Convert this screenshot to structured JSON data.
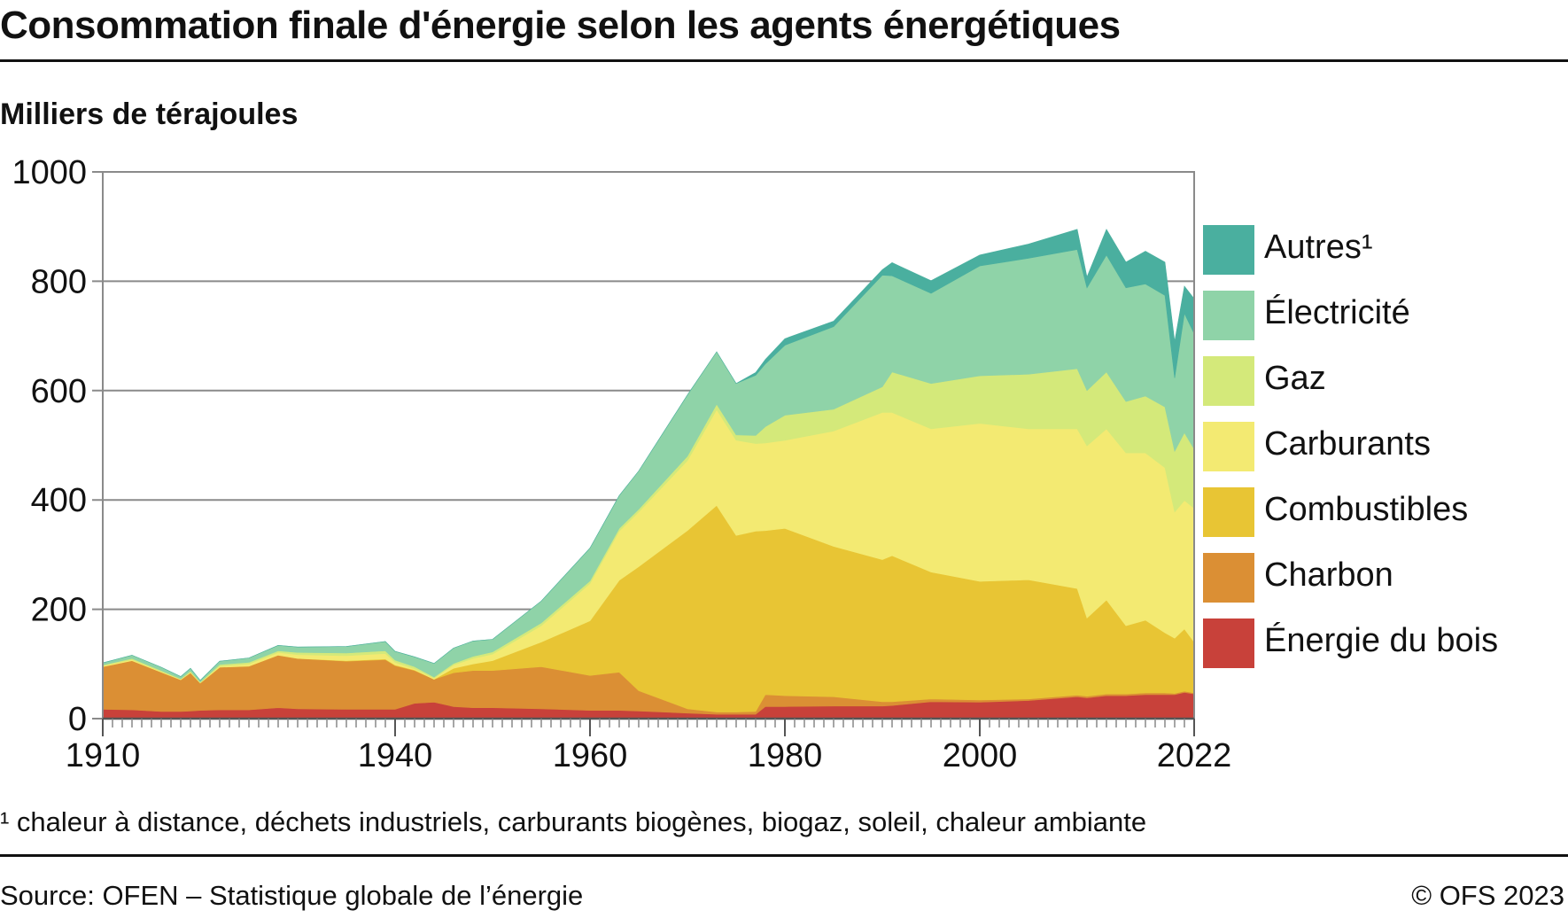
{
  "header": {
    "title": "Consommation finale d'énergie selon les agents énergétiques",
    "unit": "Milliers de térajoules"
  },
  "footer": {
    "footnote": "¹ chaleur à distance, déchets industriels, carburants biogènes, biogaz, soleil, chaleur ambiante",
    "source": "Source: OFEN – Statistique globale de l’énergie",
    "copyright": "© OFS 2023"
  },
  "chart_data": {
    "type": "area",
    "stacked": true,
    "title": "Consommation finale d'énergie selon les agents énergétiques",
    "ylabel": "Milliers de térajoules",
    "xlabel": "",
    "xlim": [
      1910,
      2022
    ],
    "ylim": [
      0,
      1000
    ],
    "x_tick_labels": [
      "1910",
      "1940",
      "1960",
      "1980",
      "2000",
      "2022"
    ],
    "y_tick_labels": [
      "0",
      "200",
      "400",
      "600",
      "800",
      "1000"
    ],
    "grid": "horizontal",
    "legend_position": "right",
    "x": [
      1910,
      1913,
      1916,
      1918,
      1919,
      1920,
      1922,
      1925,
      1928,
      1930,
      1935,
      1939,
      1940,
      1942,
      1944,
      1946,
      1948,
      1950,
      1955,
      1960,
      1963,
      1965,
      1970,
      1973,
      1975,
      1977,
      1978,
      1980,
      1985,
      1990,
      1991,
      1995,
      2000,
      2005,
      2010,
      2011,
      2013,
      2015,
      2017,
      2019,
      2020,
      2021,
      2022
    ],
    "series": [
      {
        "name": "Énergie du bois",
        "color": "#c8413a",
        "values": [
          17,
          16,
          13,
          13,
          14,
          15,
          16,
          16,
          20,
          18,
          17,
          17,
          17,
          28,
          30,
          22,
          20,
          20,
          18,
          15,
          15,
          14,
          10,
          8,
          8,
          8,
          22,
          22,
          23,
          23,
          24,
          31,
          30,
          33,
          40,
          38,
          42,
          42,
          44,
          44,
          44,
          48,
          45
        ]
      },
      {
        "name": "Charbon",
        "color": "#db8f34",
        "values": [
          78,
          90,
          72,
          58,
          70,
          50,
          78,
          80,
          96,
          92,
          88,
          91,
          80,
          60,
          42,
          62,
          68,
          68,
          77,
          64,
          70,
          37,
          8,
          4,
          4,
          5,
          22,
          20,
          17,
          8,
          7,
          5,
          4,
          3,
          3,
          3,
          3,
          3,
          3,
          3,
          2,
          2,
          2
        ]
      },
      {
        "name": "Combustibles",
        "color": "#e8c534",
        "values": [
          0,
          0,
          0,
          0,
          0,
          0,
          0,
          0,
          0,
          0,
          1,
          1,
          1,
          1,
          0,
          8,
          12,
          18,
          45,
          100,
          168,
          227,
          326,
          378,
          323,
          330,
          300,
          306,
          275,
          260,
          267,
          232,
          217,
          218,
          195,
          143,
          172,
          125,
          133,
          110,
          101,
          114,
          93
        ]
      },
      {
        "name": "Carburants",
        "color": "#f3ea72",
        "values": [
          2,
          2,
          1,
          1,
          1,
          1,
          2,
          4,
          5,
          7,
          9,
          10,
          5,
          2,
          2,
          6,
          10,
          12,
          30,
          68,
          90,
          100,
          128,
          175,
          174,
          160,
          160,
          161,
          211,
          269,
          262,
          262,
          289,
          276,
          292,
          315,
          313,
          316,
          306,
          302,
          231,
          235,
          245
        ]
      },
      {
        "name": "Gaz",
        "color": "#d4e97a",
        "values": [
          1,
          2,
          2,
          1,
          2,
          1,
          3,
          3,
          3,
          4,
          5,
          5,
          4,
          4,
          2,
          3,
          4,
          4,
          5,
          5,
          5,
          5,
          8,
          10,
          10,
          15,
          30,
          46,
          40,
          47,
          74,
          83,
          87,
          100,
          110,
          101,
          104,
          94,
          104,
          111,
          111,
          124,
          108
        ]
      },
      {
        "name": "Électricité",
        "color": "#8fd3a8",
        "values": [
          4,
          6,
          6,
          4,
          5,
          3,
          6,
          8,
          10,
          10,
          12,
          17,
          16,
          18,
          25,
          28,
          28,
          23,
          40,
          60,
          60,
          70,
          112,
          96,
          94,
          110,
          115,
          128,
          151,
          204,
          176,
          165,
          201,
          212,
          218,
          188,
          214,
          208,
          205,
          204,
          134,
          218,
          211
        ]
      },
      {
        "name": "Autres¹",
        "color": "#4aaf9f",
        "values": [
          0,
          0,
          0,
          0,
          0,
          0,
          0,
          0,
          0,
          0,
          0,
          0,
          0,
          0,
          0,
          0,
          0,
          0,
          0,
          0,
          0,
          0,
          0,
          0,
          0,
          5,
          8,
          12,
          10,
          10,
          24,
          23,
          20,
          26,
          37,
          20,
          47,
          47,
          60,
          61,
          67,
          50,
          64
        ]
      }
    ]
  },
  "legend": {
    "items": [
      {
        "label": "Autres¹",
        "color": "#4aaf9f"
      },
      {
        "label": "Électricité",
        "color": "#8fd3a8"
      },
      {
        "label": "Gaz",
        "color": "#d4e97a"
      },
      {
        "label": "Carburants",
        "color": "#f3ea72"
      },
      {
        "label": "Combustibles",
        "color": "#e8c534"
      },
      {
        "label": "Charbon",
        "color": "#db8f34"
      },
      {
        "label": "Énergie du bois",
        "color": "#c8413a"
      }
    ]
  }
}
